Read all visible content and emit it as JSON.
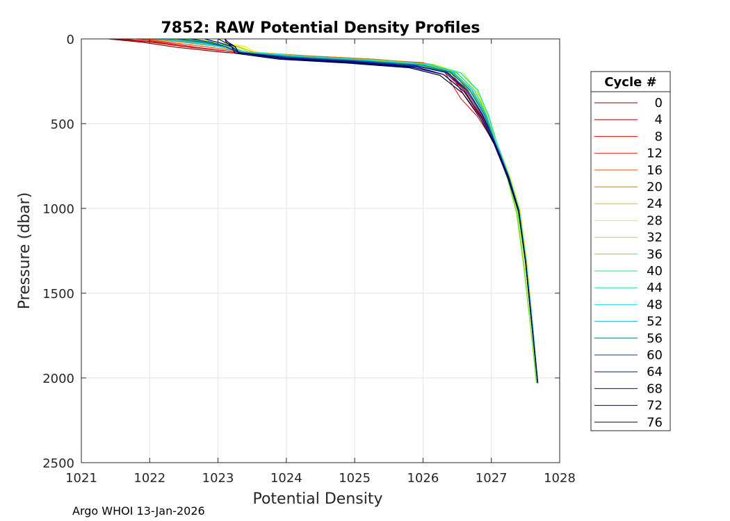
{
  "chart_data": {
    "type": "line",
    "title": "7852: RAW Potential Density Profiles",
    "xlabel": "Potential Density",
    "ylabel": "Pressure (dbar)",
    "xlim": [
      1021,
      1028
    ],
    "ylim": [
      0,
      2500
    ],
    "y_reversed": true,
    "grid": true,
    "x_ticks": [
      "1021",
      "1022",
      "1023",
      "1024",
      "1025",
      "1026",
      "1027",
      "1028"
    ],
    "y_ticks": [
      "0",
      "500",
      "1000",
      "1500",
      "2000",
      "2500"
    ],
    "legend": {
      "title": "Cycle #",
      "placement": "right",
      "entries": [
        {
          "label": "0",
          "color": "#7f0000"
        },
        {
          "label": "4",
          "color": "#b00000"
        },
        {
          "label": "8",
          "color": "#e00000"
        },
        {
          "label": "12",
          "color": "#e82020"
        },
        {
          "label": "16",
          "color": "#e05a20"
        },
        {
          "label": "20",
          "color": "#c08000"
        },
        {
          "label": "24",
          "color": "#d4c000"
        },
        {
          "label": "28",
          "color": "#f0f000"
        },
        {
          "label": "32",
          "color": "#b0e800"
        },
        {
          "label": "36",
          "color": "#70e030"
        },
        {
          "label": "40",
          "color": "#30e060"
        },
        {
          "label": "44",
          "color": "#10e0b0"
        },
        {
          "label": "48",
          "color": "#10e0e0"
        },
        {
          "label": "52",
          "color": "#10b0d0"
        },
        {
          "label": "56",
          "color": "#007080"
        },
        {
          "label": "60",
          "color": "#004090"
        },
        {
          "label": "64",
          "color": "#0010b0"
        },
        {
          "label": "68",
          "color": "#000080"
        },
        {
          "label": "72",
          "color": "#000060"
        },
        {
          "label": "76",
          "color": "#000040"
        }
      ]
    },
    "series": [
      {
        "cycle": 0,
        "color": "#7f0000",
        "x": [
          1021.4,
          1021.9,
          1022.4,
          1023.1,
          1024.0,
          1025.0,
          1025.9,
          1026.3,
          1026.6,
          1026.85,
          1027.05,
          1027.25,
          1027.4,
          1027.5,
          1027.6,
          1027.68
        ],
        "y": [
          0,
          20,
          50,
          80,
          100,
          125,
          150,
          190,
          300,
          450,
          600,
          800,
          1000,
          1300,
          1700,
          2030
        ]
      },
      {
        "cycle": 4,
        "color": "#b00000",
        "x": [
          1021.5,
          1022.0,
          1022.5,
          1023.2,
          1024.1,
          1025.1,
          1025.95,
          1026.35,
          1026.62,
          1026.87,
          1027.06,
          1027.26,
          1027.41,
          1027.51,
          1027.61,
          1027.68
        ],
        "y": [
          0,
          18,
          45,
          75,
          100,
          122,
          148,
          190,
          310,
          460,
          610,
          810,
          1010,
          1310,
          1710,
          2030
        ]
      },
      {
        "cycle": 8,
        "color": "#e00000",
        "x": [
          1021.6,
          1022.1,
          1022.6,
          1023.3,
          1024.2,
          1025.2,
          1026.0,
          1026.35,
          1026.6,
          1026.86,
          1027.05,
          1027.25,
          1027.4,
          1027.5,
          1027.6,
          1027.68
        ],
        "y": [
          0,
          20,
          50,
          80,
          105,
          125,
          145,
          180,
          330,
          470,
          620,
          820,
          1020,
          1320,
          1720,
          2030
        ]
      },
      {
        "cycle": 12,
        "color": "#e82020",
        "x": [
          1021.8,
          1022.2,
          1022.7,
          1023.3,
          1024.2,
          1025.2,
          1026.0,
          1026.3,
          1026.55,
          1026.8,
          1027.04,
          1027.24,
          1027.4,
          1027.5,
          1027.6,
          1027.68
        ],
        "y": [
          0,
          20,
          50,
          80,
          100,
          120,
          140,
          185,
          350,
          460,
          610,
          810,
          1010,
          1310,
          1710,
          2030
        ]
      },
      {
        "cycle": 16,
        "color": "#e05a20",
        "x": [
          1021.9,
          1022.3,
          1022.8,
          1023.35,
          1024.3,
          1025.3,
          1026.05,
          1026.4,
          1026.63,
          1026.87,
          1027.05,
          1027.25,
          1027.4,
          1027.5,
          1027.6,
          1027.68
        ],
        "y": [
          0,
          20,
          45,
          75,
          100,
          120,
          145,
          195,
          310,
          470,
          620,
          820,
          1020,
          1320,
          1720,
          2030
        ]
      },
      {
        "cycle": 20,
        "color": "#c08000",
        "x": [
          1022.0,
          1022.5,
          1023.0,
          1023.4,
          1024.3,
          1025.3,
          1026.1,
          1026.45,
          1026.68,
          1026.9,
          1027.06,
          1027.26,
          1027.41,
          1027.51,
          1027.61,
          1027.68
        ],
        "y": [
          0,
          20,
          45,
          75,
          100,
          120,
          148,
          200,
          320,
          470,
          620,
          820,
          1020,
          1320,
          1720,
          2030
        ]
      },
      {
        "cycle": 24,
        "color": "#d4c000",
        "x": [
          1022.3,
          1022.8,
          1023.3,
          1023.5,
          1024.3,
          1025.3,
          1026.15,
          1026.55,
          1026.78,
          1026.95,
          1027.08,
          1027.27,
          1027.42,
          1027.52,
          1027.61,
          1027.68
        ],
        "y": [
          0,
          20,
          45,
          75,
          105,
          125,
          150,
          200,
          300,
          450,
          610,
          810,
          1010,
          1310,
          1710,
          2030
        ]
      },
      {
        "cycle": 28,
        "color": "#f0f000",
        "x": [
          1022.5,
          1023.0,
          1023.4,
          1023.55,
          1024.35,
          1025.35,
          1026.2,
          1026.6,
          1026.8,
          1026.95,
          1027.08,
          1027.27,
          1027.42,
          1027.52,
          1027.61,
          1027.68
        ],
        "y": [
          0,
          20,
          45,
          80,
          108,
          128,
          155,
          205,
          310,
          450,
          610,
          810,
          1010,
          1310,
          1710,
          2030
        ]
      },
      {
        "cycle": 32,
        "color": "#b0e800",
        "x": [
          1022.6,
          1023.0,
          1023.3,
          1023.5,
          1024.2,
          1025.2,
          1026.1,
          1026.5,
          1026.75,
          1026.95,
          1027.07,
          1027.25,
          1027.38,
          1027.48,
          1027.58,
          1027.66
        ],
        "y": [
          0,
          20,
          50,
          85,
          112,
          132,
          160,
          205,
          300,
          450,
          620,
          830,
          1030,
          1330,
          1720,
          2030
        ]
      },
      {
        "cycle": 36,
        "color": "#70e030",
        "x": [
          1022.4,
          1022.9,
          1023.2,
          1023.45,
          1024.1,
          1025.1,
          1026.0,
          1026.45,
          1026.72,
          1026.93,
          1027.06,
          1027.24,
          1027.37,
          1027.47,
          1027.58,
          1027.66
        ],
        "y": [
          0,
          20,
          50,
          85,
          115,
          135,
          160,
          210,
          320,
          460,
          620,
          830,
          1030,
          1330,
          1720,
          2030
        ]
      },
      {
        "cycle": 40,
        "color": "#30e060",
        "x": [
          1022.5,
          1022.9,
          1023.2,
          1023.4,
          1024.1,
          1025.1,
          1026.0,
          1026.45,
          1026.72,
          1026.92,
          1027.06,
          1027.25,
          1027.39,
          1027.5,
          1027.6,
          1027.67
        ],
        "y": [
          0,
          20,
          45,
          80,
          110,
          132,
          158,
          205,
          310,
          460,
          620,
          820,
          1020,
          1320,
          1720,
          2030
        ]
      },
      {
        "cycle": 44,
        "color": "#10e0b0",
        "x": [
          1022.2,
          1022.7,
          1023.1,
          1023.4,
          1024.2,
          1025.2,
          1026.1,
          1026.5,
          1026.75,
          1026.93,
          1027.06,
          1027.25,
          1027.4,
          1027.5,
          1027.6,
          1027.68
        ],
        "y": [
          0,
          20,
          45,
          78,
          105,
          128,
          155,
          200,
          300,
          450,
          610,
          810,
          1010,
          1310,
          1710,
          2030
        ]
      },
      {
        "cycle": 48,
        "color": "#10e0e0",
        "x": [
          1022.1,
          1022.6,
          1023.0,
          1023.35,
          1024.2,
          1025.2,
          1026.1,
          1026.55,
          1026.8,
          1026.96,
          1027.08,
          1027.26,
          1027.41,
          1027.51,
          1027.61,
          1027.68
        ],
        "y": [
          0,
          20,
          45,
          75,
          102,
          125,
          150,
          200,
          300,
          450,
          610,
          810,
          1010,
          1310,
          1710,
          2030
        ]
      },
      {
        "cycle": 52,
        "color": "#10b0d0",
        "x": [
          1022.2,
          1022.7,
          1023.1,
          1023.35,
          1024.1,
          1025.1,
          1026.0,
          1026.45,
          1026.72,
          1026.92,
          1027.06,
          1027.25,
          1027.4,
          1027.5,
          1027.6,
          1027.68
        ],
        "y": [
          0,
          20,
          45,
          78,
          105,
          128,
          155,
          200,
          300,
          450,
          610,
          810,
          1010,
          1310,
          1710,
          2030
        ]
      },
      {
        "cycle": 56,
        "color": "#007080",
        "x": [
          1022.4,
          1022.8,
          1023.1,
          1023.3,
          1024.1,
          1025.1,
          1026.0,
          1026.4,
          1026.68,
          1026.9,
          1027.05,
          1027.25,
          1027.4,
          1027.5,
          1027.6,
          1027.68
        ],
        "y": [
          0,
          20,
          45,
          80,
          108,
          130,
          155,
          195,
          300,
          450,
          610,
          810,
          1010,
          1310,
          1710,
          2030
        ]
      },
      {
        "cycle": 60,
        "color": "#004090",
        "x": [
          1022.6,
          1022.9,
          1023.1,
          1023.3,
          1024.0,
          1025.0,
          1025.9,
          1026.35,
          1026.65,
          1026.88,
          1027.05,
          1027.25,
          1027.4,
          1027.5,
          1027.6,
          1027.68
        ],
        "y": [
          0,
          20,
          45,
          80,
          110,
          132,
          158,
          195,
          300,
          450,
          610,
          810,
          1010,
          1310,
          1710,
          2030
        ]
      },
      {
        "cycle": 64,
        "color": "#0010b0",
        "x": [
          1022.8,
          1023.0,
          1023.2,
          1023.3,
          1024.0,
          1025.0,
          1025.9,
          1026.35,
          1026.63,
          1026.87,
          1027.05,
          1027.25,
          1027.4,
          1027.5,
          1027.6,
          1027.68
        ],
        "y": [
          0,
          20,
          45,
          80,
          112,
          135,
          160,
          200,
          300,
          450,
          610,
          810,
          1010,
          1310,
          1710,
          2030
        ]
      },
      {
        "cycle": 68,
        "color": "#000080",
        "x": [
          1023.0,
          1023.1,
          1023.25,
          1023.3,
          1024.0,
          1025.0,
          1025.9,
          1026.3,
          1026.6,
          1026.85,
          1027.04,
          1027.24,
          1027.4,
          1027.5,
          1027.6,
          1027.68
        ],
        "y": [
          0,
          20,
          45,
          80,
          115,
          138,
          165,
          210,
          310,
          460,
          610,
          810,
          1010,
          1310,
          1710,
          2030
        ]
      },
      {
        "cycle": 72,
        "color": "#000060",
        "x": [
          1023.1,
          1023.15,
          1023.25,
          1023.3,
          1023.95,
          1024.95,
          1025.85,
          1026.3,
          1026.6,
          1026.85,
          1027.04,
          1027.24,
          1027.4,
          1027.5,
          1027.6,
          1027.68
        ],
        "y": [
          0,
          20,
          45,
          82,
          118,
          140,
          168,
          210,
          310,
          460,
          610,
          810,
          1010,
          1310,
          1710,
          2030
        ]
      },
      {
        "cycle": 76,
        "color": "#000040",
        "x": [
          1023.1,
          1023.12,
          1023.2,
          1023.25,
          1023.9,
          1024.9,
          1025.8,
          1026.25,
          1026.58,
          1026.84,
          1027.04,
          1027.24,
          1027.4,
          1027.5,
          1027.6,
          1027.68
        ],
        "y": [
          0,
          20,
          45,
          85,
          120,
          143,
          170,
          215,
          320,
          470,
          620,
          820,
          1020,
          1320,
          1720,
          2030
        ]
      }
    ]
  },
  "footer": {
    "text": "Argo WHOI 13-Jan-2026"
  }
}
